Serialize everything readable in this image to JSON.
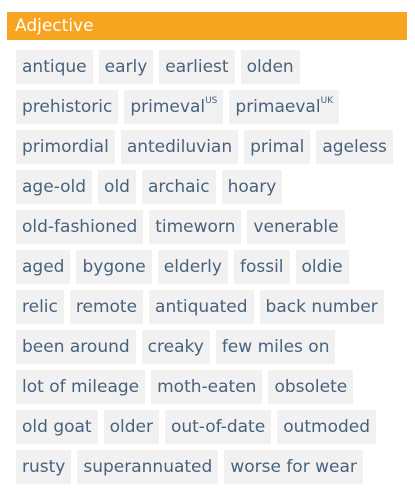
{
  "header": {
    "title": "Adjective"
  },
  "rows": [
    [
      {
        "text": "antique"
      },
      {
        "text": "early"
      },
      {
        "text": "earliest"
      },
      {
        "text": "olden"
      }
    ],
    [
      {
        "text": "prehistoric"
      },
      {
        "text": "primeval",
        "sup": "US"
      },
      {
        "text": "primaeval",
        "sup": "UK"
      }
    ],
    [
      {
        "text": "primordial"
      },
      {
        "text": "antediluvian"
      },
      {
        "text": "primal"
      },
      {
        "text": "ageless"
      }
    ],
    [
      {
        "text": "age-old"
      },
      {
        "text": "old"
      },
      {
        "text": "archaic"
      },
      {
        "text": "hoary"
      }
    ],
    [
      {
        "text": "old-fashioned"
      },
      {
        "text": "timeworn"
      },
      {
        "text": "venerable"
      }
    ],
    [
      {
        "text": "aged"
      },
      {
        "text": "bygone"
      },
      {
        "text": "elderly"
      },
      {
        "text": "fossil"
      },
      {
        "text": "oldie"
      }
    ],
    [
      {
        "text": "relic"
      },
      {
        "text": "remote"
      },
      {
        "text": "antiquated"
      },
      {
        "text": "back number"
      }
    ],
    [
      {
        "text": "been around"
      },
      {
        "text": "creaky"
      },
      {
        "text": "few miles on"
      }
    ],
    [
      {
        "text": "lot of mileage"
      },
      {
        "text": "moth-eaten"
      },
      {
        "text": "obsolete"
      }
    ],
    [
      {
        "text": "old goat"
      },
      {
        "text": "older"
      },
      {
        "text": "out-of-date"
      },
      {
        "text": "outmoded"
      }
    ],
    [
      {
        "text": "rusty"
      },
      {
        "text": "superannuated"
      },
      {
        "text": "worse for wear"
      }
    ]
  ],
  "colors": {
    "header_bg": "#f7a521",
    "chip_bg": "#f1f1f1",
    "chip_text": "#49627e"
  }
}
